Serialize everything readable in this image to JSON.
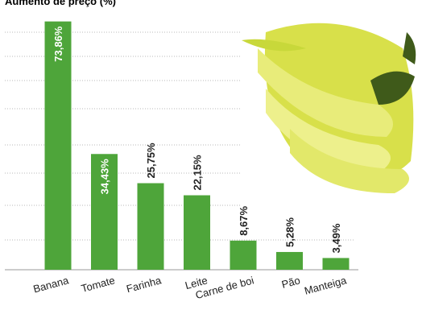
{
  "chart_data": {
    "type": "bar",
    "title": "Aumento de preço (%)",
    "categories": [
      "Banana",
      "Tomate",
      "Farinha",
      "Leite",
      "Carne de boi",
      "Pão",
      "Manteiga"
    ],
    "values": [
      73.86,
      34.43,
      25.75,
      22.15,
      8.67,
      5.28,
      3.49
    ],
    "value_labels": [
      "73,86%",
      "34,43%",
      "25,75%",
      "22,15%",
      "8,67%",
      "5,28%",
      "3,49%"
    ],
    "color": "#4ea53a",
    "ylim": [
      0,
      80
    ]
  }
}
